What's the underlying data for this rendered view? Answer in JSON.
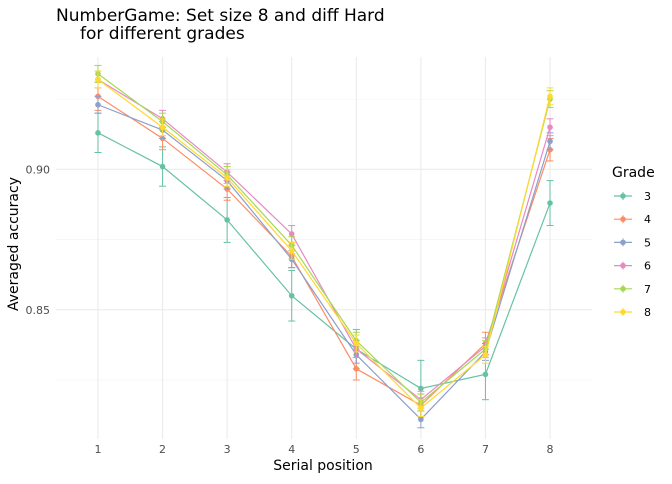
{
  "chart_data": {
    "type": "line",
    "title_lines": [
      "NumberGame: Set size 8 and diff Hard",
      "for different grades"
    ],
    "xlabel": "Serial position",
    "ylabel": "Averaged accuracy",
    "x": [
      1,
      2,
      3,
      4,
      5,
      6,
      7,
      8
    ],
    "x_ticks": [
      "1",
      "2",
      "3",
      "4",
      "5",
      "6",
      "7",
      "8"
    ],
    "y_ticks": [
      "0.85",
      "0.90"
    ],
    "ylim": [
      0.804,
      0.94
    ],
    "grid": true,
    "error_bars": true,
    "legend": {
      "title": "Grade",
      "position": "right"
    },
    "series": [
      {
        "name": "3",
        "color": "#66c2a5",
        "values": [
          0.913,
          0.901,
          0.882,
          0.855,
          0.836,
          0.822,
          0.827,
          0.888
        ],
        "errors": [
          0.007,
          0.007,
          0.008,
          0.009,
          0.007,
          0.01,
          0.009,
          0.008
        ]
      },
      {
        "name": "4",
        "color": "#fc8d62",
        "values": [
          0.926,
          0.911,
          0.893,
          0.869,
          0.829,
          0.816,
          0.838,
          0.907
        ],
        "errors": [
          0.005,
          0.004,
          0.004,
          0.004,
          0.004,
          0.004,
          0.004,
          0.004
        ]
      },
      {
        "name": "5",
        "color": "#8da0cb",
        "values": [
          0.923,
          0.914,
          0.896,
          0.868,
          0.834,
          0.811,
          0.835,
          0.91
        ],
        "errors": [
          0.003,
          0.003,
          0.003,
          0.003,
          0.003,
          0.003,
          0.003,
          0.003
        ]
      },
      {
        "name": "6",
        "color": "#e78ac3",
        "values": [
          0.932,
          0.918,
          0.899,
          0.877,
          0.836,
          0.818,
          0.837,
          0.915
        ],
        "errors": [
          0.003,
          0.003,
          0.003,
          0.003,
          0.003,
          0.003,
          0.003,
          0.003
        ]
      },
      {
        "name": "7",
        "color": "#a6d854",
        "values": [
          0.934,
          0.917,
          0.898,
          0.873,
          0.839,
          0.817,
          0.836,
          0.925
        ],
        "errors": [
          0.003,
          0.003,
          0.003,
          0.003,
          0.003,
          0.003,
          0.003,
          0.003
        ]
      },
      {
        "name": "8",
        "color": "#ffd92f",
        "values": [
          0.932,
          0.915,
          0.897,
          0.871,
          0.838,
          0.815,
          0.834,
          0.926
        ],
        "errors": [
          0.003,
          0.003,
          0.003,
          0.003,
          0.003,
          0.003,
          0.003,
          0.003
        ]
      }
    ]
  }
}
